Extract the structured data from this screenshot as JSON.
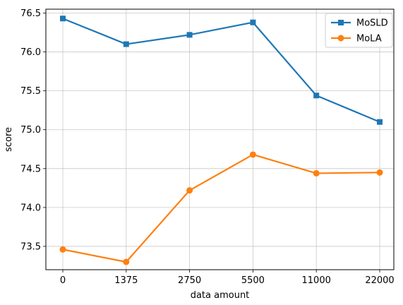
{
  "chart_data": {
    "type": "line",
    "categories": [
      "0",
      "1375",
      "2750",
      "5500",
      "11000",
      "22000"
    ],
    "series": [
      {
        "name": "MoSLD",
        "color": "#1f77b4",
        "marker": "square",
        "values": [
          76.43,
          76.1,
          76.22,
          76.38,
          75.44,
          75.1
        ]
      },
      {
        "name": "MoLA",
        "color": "#ff7f0e",
        "marker": "circle",
        "values": [
          73.46,
          73.3,
          74.22,
          74.68,
          74.44,
          74.45
        ]
      }
    ],
    "title": "",
    "xlabel": "data amount",
    "ylabel": "score",
    "ylim": [
      73.2,
      76.55
    ],
    "yticks": [
      "73.5",
      "74.0",
      "74.5",
      "75.0",
      "75.5",
      "76.0",
      "76.5"
    ],
    "grid": true,
    "legend_position": "top-right"
  }
}
